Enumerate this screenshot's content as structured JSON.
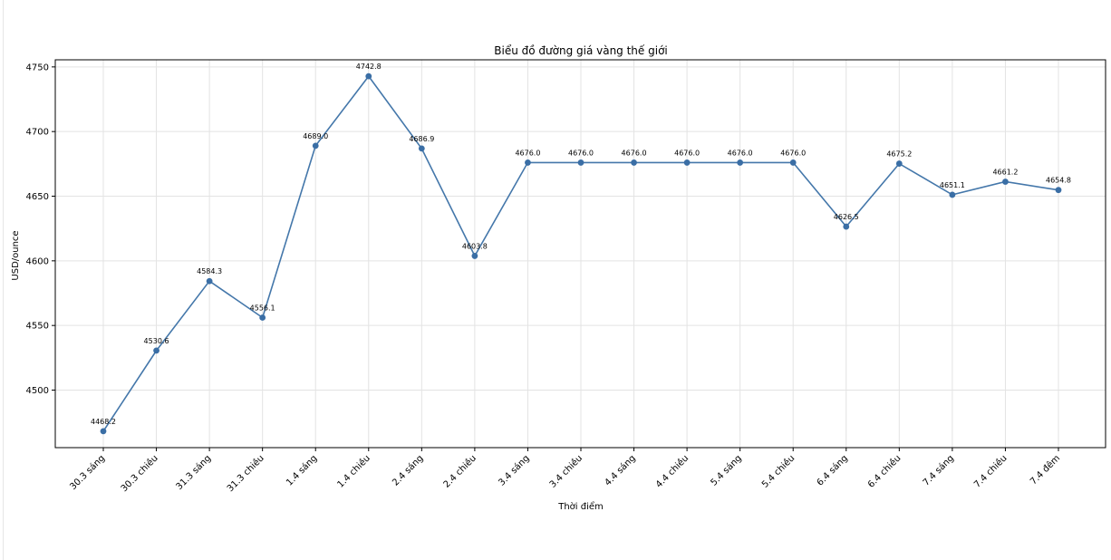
{
  "chart_data": {
    "type": "line",
    "title": "Biểu đồ đường giá vàng thế giới",
    "xlabel": "Thời điểm",
    "ylabel": "USD/ounce",
    "categories": [
      "30.3 sáng",
      "30.3 chiều",
      "31.3 sáng",
      "31.3 chiều",
      "1.4 sáng",
      "1.4 chiều",
      "2.4 sáng",
      "2.4 chiều",
      "3.4 sáng",
      "3.4 chiều",
      "4.4 sáng",
      "4.4 chiều",
      "5.4 sáng",
      "5.4 chiều",
      "6.4 sáng",
      "6.4 chiều",
      "7.4 sáng",
      "7.4 chiều",
      "7.4 đêm"
    ],
    "values": [
      4468.2,
      4530.6,
      4584.3,
      4556.1,
      4689.0,
      4742.8,
      4686.9,
      4603.8,
      4676.0,
      4676.0,
      4676.0,
      4676.0,
      4676.0,
      4676.0,
      4626.5,
      4675.2,
      4651.1,
      4661.2,
      4654.8
    ],
    "labels": [
      "4468.2",
      "4530.6",
      "4584.3",
      "4556.1",
      "4689.0",
      "4742.8",
      "4686.9",
      "4603.8",
      "4676.0",
      "4676.0",
      "4676.0",
      "4676.0",
      "4676.0",
      "4676.0",
      "4626.5",
      "4675.2",
      "4651.1",
      "4661.2",
      "4654.8"
    ],
    "yticks": [
      4500,
      4550,
      4600,
      4650,
      4700,
      4750
    ],
    "ylim": [
      4455.5,
      4755.5
    ],
    "grid": true,
    "line_color": "#4477aa",
    "marker_color": "#3a6ea5"
  }
}
